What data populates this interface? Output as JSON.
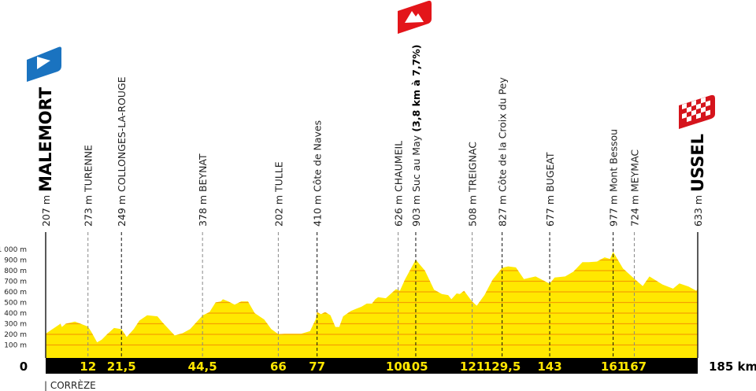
{
  "chart_data": {
    "type": "area",
    "xlabel": "",
    "ylabel": "",
    "x_unit": "km",
    "xlim": [
      0,
      185
    ],
    "ylim": [
      0,
      1000
    ],
    "x_start_label": "0",
    "x_end_label": "185 km",
    "yticks": [
      "100 m",
      "200 m",
      "300 m",
      "400 m",
      "500 m",
      "600 m",
      "700 m",
      "800 m",
      "900 m",
      "1 000 m"
    ],
    "ytick_values": [
      100,
      200,
      300,
      400,
      500,
      600,
      700,
      800,
      900,
      1000
    ],
    "grid": true,
    "colors": {
      "fill": "#ffe800",
      "grid": "#f5a000",
      "bar": "#000000",
      "km_label": "#ffe600",
      "start_flag": "#1a73c0",
      "climb_flag": "#e3151a",
      "finish_flag": "#d5141c"
    },
    "region_label": "| CORRÈZE",
    "profile": {
      "x": [
        0,
        4.2,
        4.6,
        5.7,
        8.3,
        12,
        13,
        14.6,
        15.9,
        17.4,
        19.4,
        21.5,
        23,
        25,
        26.6,
        28.8,
        31.7,
        33.2,
        36.6,
        38.8,
        41,
        44.5,
        46.5,
        48.2,
        49.7,
        50.3,
        51.8,
        53.6,
        55.5,
        57.4,
        59.3,
        62,
        64,
        66,
        67.8,
        72.5,
        75,
        76.6,
        77,
        78.1,
        79.3,
        80.8,
        82.2,
        83.3,
        84.4,
        86.6,
        88,
        89.6,
        91.1,
        92.6,
        93.5,
        94.3,
        96.5,
        99.4,
        100.5,
        102,
        105,
        107.6,
        110.2,
        112.4,
        114.2,
        115.1,
        116.6,
        117.5,
        118.7,
        121,
        122.3,
        124.5,
        126.8,
        129.5,
        131.2,
        133.4,
        135.7,
        139,
        143,
        144.4,
        147.4,
        149.7,
        152.3,
        154.1,
        156.4,
        158.6,
        160.1,
        161,
        163.8,
        167,
        169.4,
        171.3,
        175,
        178,
        179.8,
        182.4,
        184.6,
        185
      ],
      "y": [
        207,
        300,
        270,
        300,
        320,
        273,
        220,
        125,
        150,
        200,
        260,
        249,
        175,
        250,
        330,
        380,
        370,
        310,
        190,
        210,
        250,
        378,
        410,
        500,
        510,
        530,
        510,
        480,
        510,
        510,
        400,
        340,
        250,
        202,
        205,
        205,
        230,
        340,
        410,
        390,
        410,
        380,
        270,
        270,
        370,
        420,
        440,
        460,
        490,
        490,
        530,
        550,
        540,
        626,
        610,
        720,
        903,
        800,
        620,
        580,
        570,
        530,
        585,
        580,
        610,
        508,
        470,
        570,
        715,
        827,
        840,
        830,
        720,
        745,
        677,
        735,
        745,
        790,
        880,
        880,
        885,
        925,
        910,
        977,
        820,
        724,
        655,
        745,
        670,
        630,
        680,
        650,
        610,
        633
      ]
    },
    "waypoints": [
      {
        "km": 0,
        "km_label": "",
        "altitude": "207 m",
        "name": "MALEMORT",
        "type": "start"
      },
      {
        "km": 12,
        "km_label": "12",
        "altitude": "273 m",
        "name": "TURENNE",
        "type": "town"
      },
      {
        "km": 21.5,
        "km_label": "21,5",
        "altitude": "249 m",
        "name": "COLLONGES-LA-ROUGE",
        "type": "town"
      },
      {
        "km": 44.5,
        "km_label": "44,5",
        "altitude": "378 m",
        "name": "BEYNAT",
        "type": "town"
      },
      {
        "km": 66,
        "km_label": "66",
        "altitude": "202 m",
        "name": "TULLE",
        "type": "town"
      },
      {
        "km": 77,
        "km_label": "77",
        "altitude": "410 m",
        "name": "Côte de Naves",
        "type": "climb"
      },
      {
        "km": 100,
        "km_label": "100",
        "altitude": "626 m",
        "name": "CHAUMEIL",
        "type": "town"
      },
      {
        "km": 105,
        "km_label": "105",
        "altitude": "903 m",
        "name": "Suc au May",
        "detail": "(3,8 km à 7,7%)",
        "type": "climb"
      },
      {
        "km": 121,
        "km_label": "121",
        "altitude": "508 m",
        "name": "TREIGNAC",
        "type": "town"
      },
      {
        "km": 129.5,
        "km_label": "129,5",
        "altitude": "827 m",
        "name": "Côte de la Croix du Pey",
        "type": "climb"
      },
      {
        "km": 143,
        "km_label": "143",
        "altitude": "677 m",
        "name": "BUGEAT",
        "type": "town"
      },
      {
        "km": 161,
        "km_label": "161",
        "altitude": "977 m",
        "name": "Mont Bessou",
        "type": "climb"
      },
      {
        "km": 167,
        "km_label": "167",
        "altitude": "724 m",
        "name": "MEYMAC",
        "type": "town"
      },
      {
        "km": 185,
        "km_label": "",
        "altitude": "633 m",
        "name": "USSEL",
        "type": "finish"
      }
    ],
    "icons": {
      "start": "start-flag-icon",
      "climb": "mountain-flag-icon",
      "finish": "checkered-flag-icon"
    }
  }
}
